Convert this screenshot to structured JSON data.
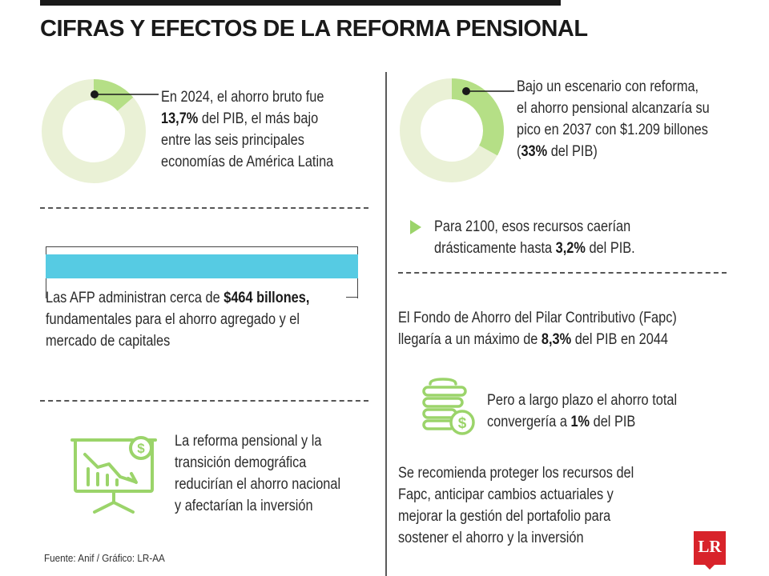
{
  "header": {
    "title": "CIFRAS Y EFECTOS DE LA REFORMA PENSIONAL"
  },
  "left": {
    "stat1": {
      "pre": "En 2024, el ahorro bruto fue",
      "value": "13,7%",
      "post": " del PIB, el más bajo",
      "line3": "entre las seis principales",
      "line4": "economías de América Latina",
      "donut_percent": 13.7
    },
    "stat2": {
      "pre": "Las AFP administran cerca de ",
      "value": "$464 billones,",
      "line2": "fundamentales para el ahorro agregado y el",
      "line3": "mercado de capitales"
    },
    "stat3": {
      "line1": "La reforma pensional y la",
      "line2": "transición demográfica",
      "line3": "reducirían el ahorro nacional",
      "line4": "y afectarían la inversión"
    },
    "source": "Fuente: Anif / Gráfico: LR-AA"
  },
  "right": {
    "stat1": {
      "line1": "Bajo un escenario con reforma,",
      "line2": "el ahorro pensional alcanzaría su",
      "line3": "pico en 2037 con $1.209 billones",
      "open": "(",
      "value": "33%",
      "post": " del PIB)",
      "donut_percent": 33
    },
    "stat2": {
      "line1": "Para 2100, esos recursos caerían",
      "pre": "drásticamente hasta ",
      "value": "3,2%",
      "post": " del PIB."
    },
    "stat3": {
      "line1": "El Fondo de Ahorro del Pilar Contributivo (Fapc)",
      "pre": "llegaría a un máximo de ",
      "value": "8,3%",
      "post": " del PIB en 2044"
    },
    "stat4": {
      "line1": "Pero a largo plazo el ahorro total",
      "pre": "convergería a ",
      "value": "1%",
      "post": " del PIB"
    },
    "stat5": {
      "line1": "Se recomienda proteger los recursos del",
      "line2": "Fapc, anticipar cambios actuariales y",
      "line3": "mejorar la gestión del portafolio para",
      "line4": "sostener el ahorro y la inversión"
    },
    "logo": "LR"
  },
  "colors": {
    "donut_bg": "#eaf1d6",
    "donut_fg": "#b5df86",
    "accent_green": "#9bd46a",
    "bar_cyan": "#56cbe3",
    "logo_red": "#d8232a"
  }
}
